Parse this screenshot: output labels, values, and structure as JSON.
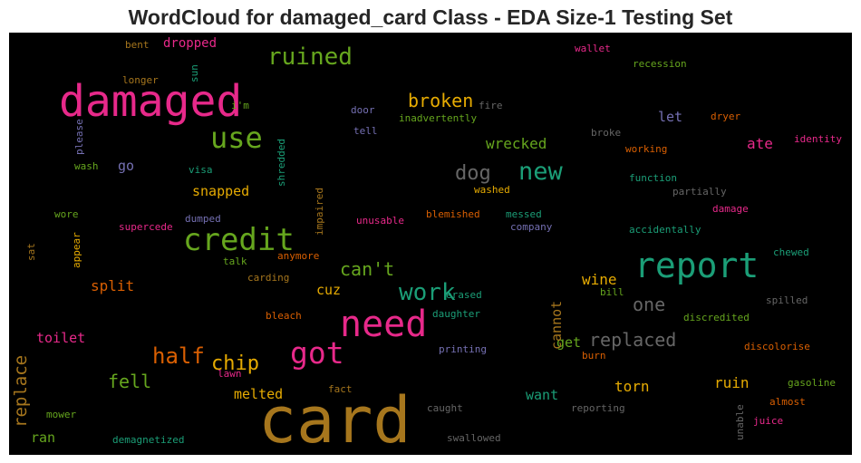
{
  "chart_data": {
    "type": "wordcloud",
    "title": "WordCloud for damaged_card Class - EDA Size-1 Testing Set",
    "background": "#000000",
    "colormap": [
      "#1b9e77",
      "#d95f02",
      "#7570b3",
      "#e7298a",
      "#66a61e",
      "#e6ab02",
      "#a6761d",
      "#666666"
    ],
    "words": [
      {
        "text": "card",
        "color": "#a6761d"
      },
      {
        "text": "damaged",
        "color": "#e7298a"
      },
      {
        "text": "need",
        "color": "#e7298a"
      },
      {
        "text": "report",
        "color": "#1b9e77"
      },
      {
        "text": "credit",
        "color": "#66a61e"
      },
      {
        "text": "got",
        "color": "#e7298a"
      },
      {
        "text": "use",
        "color": "#66a61e"
      },
      {
        "text": "new",
        "color": "#1b9e77"
      },
      {
        "text": "ruined",
        "color": "#66a61e"
      },
      {
        "text": "work",
        "color": "#1b9e77"
      },
      {
        "text": "dog",
        "color": "#666666"
      },
      {
        "text": "half",
        "color": "#d95f02"
      },
      {
        "text": "chip",
        "color": "#e6ab02"
      },
      {
        "text": "broken",
        "color": "#e6ab02"
      },
      {
        "text": "replaced",
        "color": "#666666"
      },
      {
        "text": "replace",
        "color": "#a6761d"
      },
      {
        "text": "can't",
        "color": "#66a61e"
      },
      {
        "text": "fell",
        "color": "#66a61e"
      },
      {
        "text": "wrecked",
        "color": "#66a61e"
      },
      {
        "text": "one",
        "color": "#666666"
      },
      {
        "text": "toilet",
        "color": "#e7298a"
      },
      {
        "text": "split",
        "color": "#d95f02"
      },
      {
        "text": "snapped",
        "color": "#e6ab02"
      },
      {
        "text": "melted",
        "color": "#e6ab02"
      },
      {
        "text": "cuz",
        "color": "#e6ab02"
      },
      {
        "text": "wine",
        "color": "#e6ab02"
      },
      {
        "text": "torn",
        "color": "#e6ab02"
      },
      {
        "text": "ruin",
        "color": "#e6ab02"
      },
      {
        "text": "want",
        "color": "#1b9e77"
      },
      {
        "text": "ate",
        "color": "#e7298a"
      },
      {
        "text": "let",
        "color": "#7570b3"
      },
      {
        "text": "go",
        "color": "#7570b3"
      },
      {
        "text": "get",
        "color": "#66a61e"
      },
      {
        "text": "cannot",
        "color": "#a6761d"
      },
      {
        "text": "dropped",
        "color": "#e7298a"
      },
      {
        "text": "ran",
        "color": "#66a61e"
      },
      {
        "text": "wallet",
        "color": "#e7298a"
      },
      {
        "text": "recession",
        "color": "#66a61e"
      },
      {
        "text": "bent",
        "color": "#a6761d"
      },
      {
        "text": "sun",
        "color": "#1b9e77"
      },
      {
        "text": "longer",
        "color": "#a6761d"
      },
      {
        "text": "i'm",
        "color": "#66a61e"
      },
      {
        "text": "door",
        "color": "#7570b3"
      },
      {
        "text": "fire",
        "color": "#666666"
      },
      {
        "text": "inadvertently",
        "color": "#66a61e"
      },
      {
        "text": "tell",
        "color": "#7570b3"
      },
      {
        "text": "dryer",
        "color": "#d95f02"
      },
      {
        "text": "broke",
        "color": "#666666"
      },
      {
        "text": "identity",
        "color": "#e7298a"
      },
      {
        "text": "working",
        "color": "#d95f02"
      },
      {
        "text": "please",
        "color": "#7570b3"
      },
      {
        "text": "shredded",
        "color": "#1b9e77"
      },
      {
        "text": "wash",
        "color": "#66a61e"
      },
      {
        "text": "visa",
        "color": "#1b9e77"
      },
      {
        "text": "function",
        "color": "#1b9e77"
      },
      {
        "text": "washed",
        "color": "#e6ab02"
      },
      {
        "text": "partially",
        "color": "#666666"
      },
      {
        "text": "wore",
        "color": "#66a61e"
      },
      {
        "text": "dumped",
        "color": "#7570b3"
      },
      {
        "text": "impaired",
        "color": "#a6761d"
      },
      {
        "text": "blemished",
        "color": "#d95f02"
      },
      {
        "text": "messed",
        "color": "#1b9e77"
      },
      {
        "text": "damage",
        "color": "#e7298a"
      },
      {
        "text": "supercede",
        "color": "#e7298a"
      },
      {
        "text": "unusable",
        "color": "#e7298a"
      },
      {
        "text": "company",
        "color": "#7570b3"
      },
      {
        "text": "accidentally",
        "color": "#1b9e77"
      },
      {
        "text": "appear",
        "color": "#e6ab02"
      },
      {
        "text": "sat",
        "color": "#a6761d"
      },
      {
        "text": "talk",
        "color": "#66a61e"
      },
      {
        "text": "anymore",
        "color": "#d95f02"
      },
      {
        "text": "chewed",
        "color": "#1b9e77"
      },
      {
        "text": "carding",
        "color": "#a6761d"
      },
      {
        "text": "erased",
        "color": "#1b9e77"
      },
      {
        "text": "bill",
        "color": "#66a61e"
      },
      {
        "text": "spilled",
        "color": "#666666"
      },
      {
        "text": "bleach",
        "color": "#d95f02"
      },
      {
        "text": "daughter",
        "color": "#1b9e77"
      },
      {
        "text": "discredited",
        "color": "#66a61e"
      },
      {
        "text": "printing",
        "color": "#7570b3"
      },
      {
        "text": "discolorise",
        "color": "#d95f02"
      },
      {
        "text": "burn",
        "color": "#d95f02"
      },
      {
        "text": "lawn",
        "color": "#e7298a"
      },
      {
        "text": "fact",
        "color": "#a6761d"
      },
      {
        "text": "gasoline",
        "color": "#66a61e"
      },
      {
        "text": "almost",
        "color": "#d95f02"
      },
      {
        "text": "caught",
        "color": "#666666"
      },
      {
        "text": "reporting",
        "color": "#666666"
      },
      {
        "text": "unable",
        "color": "#666666"
      },
      {
        "text": "mower",
        "color": "#66a61e"
      },
      {
        "text": "juice",
        "color": "#e7298a"
      },
      {
        "text": "demagnetized",
        "color": "#1b9e77"
      },
      {
        "text": "swallowed",
        "color": "#666666"
      }
    ]
  }
}
